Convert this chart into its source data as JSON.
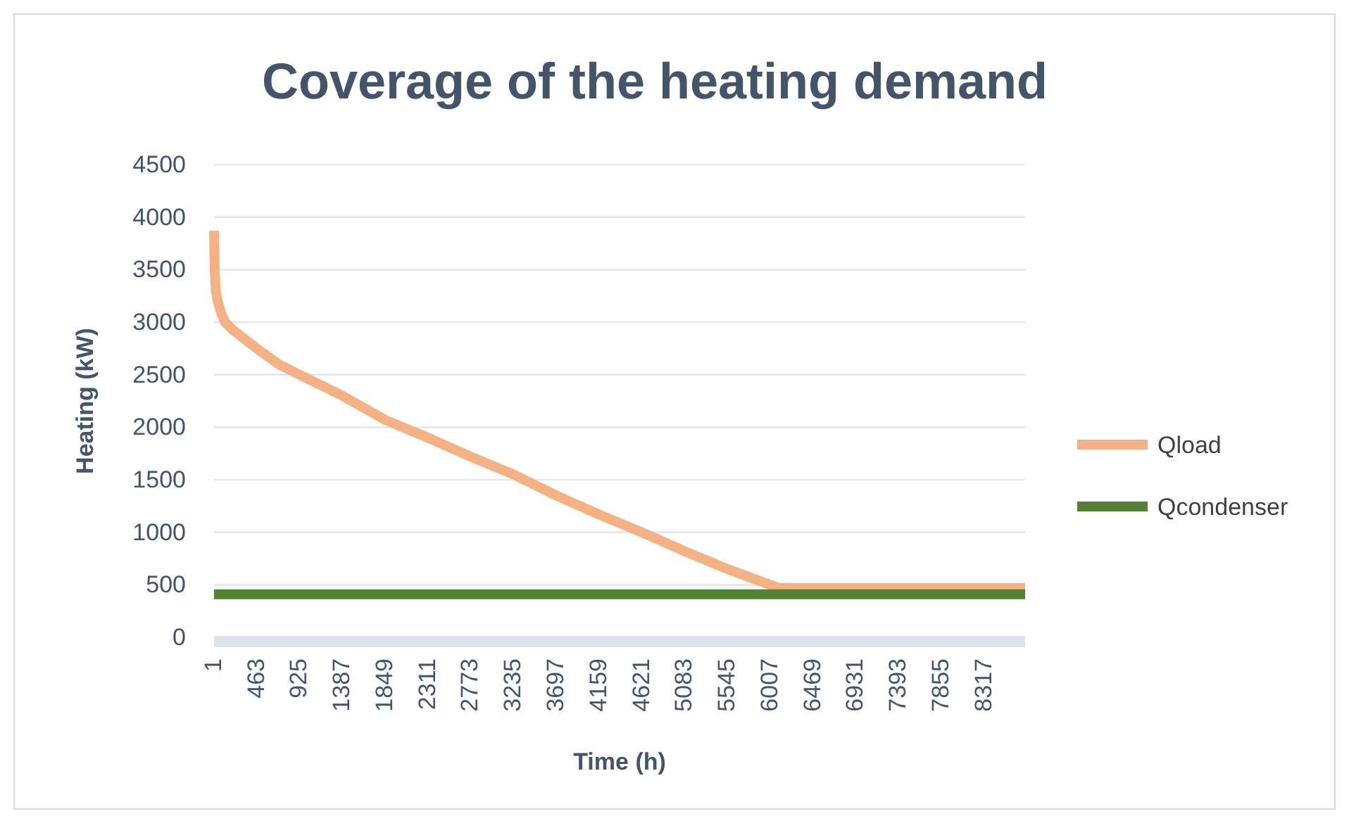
{
  "chart_data": {
    "type": "line",
    "title": "Coverage of the heating demand",
    "xlabel": "Time (h)",
    "ylabel": "Heating (kW)",
    "xlim": [
      1,
      8760
    ],
    "xticks": [
      1,
      463,
      925,
      1387,
      1849,
      2311,
      2773,
      3235,
      3697,
      4159,
      4621,
      5083,
      5545,
      6007,
      6469,
      6931,
      7393,
      7855,
      8317
    ],
    "ylim": [
      0,
      4500
    ],
    "yticks": [
      0,
      500,
      1000,
      1500,
      2000,
      2500,
      3000,
      3500,
      4000,
      4500
    ],
    "grid": "y",
    "legend": "right",
    "line_style": "solid",
    "marker": "none",
    "series": [
      {
        "name": "Qload",
        "color": "#f4b183",
        "x": [
          1,
          8,
          20,
          40,
          80,
          121,
          200,
          273,
          463,
          700,
          925,
          1387,
          1849,
          2311,
          2773,
          3235,
          3697,
          4159,
          4621,
          5083,
          5545,
          6007,
          6100,
          7000,
          8000,
          8760
        ],
        "values": [
          3870,
          3500,
          3300,
          3200,
          3080,
          3000,
          2930,
          2880,
          2750,
          2600,
          2500,
          2300,
          2070,
          1900,
          1720,
          1550,
          1350,
          1170,
          1000,
          820,
          650,
          500,
          470,
          470,
          470,
          470
        ]
      },
      {
        "name": "Qcondenser",
        "color": "#548235",
        "x": [
          1,
          8760
        ],
        "values": [
          410,
          410
        ]
      }
    ]
  }
}
